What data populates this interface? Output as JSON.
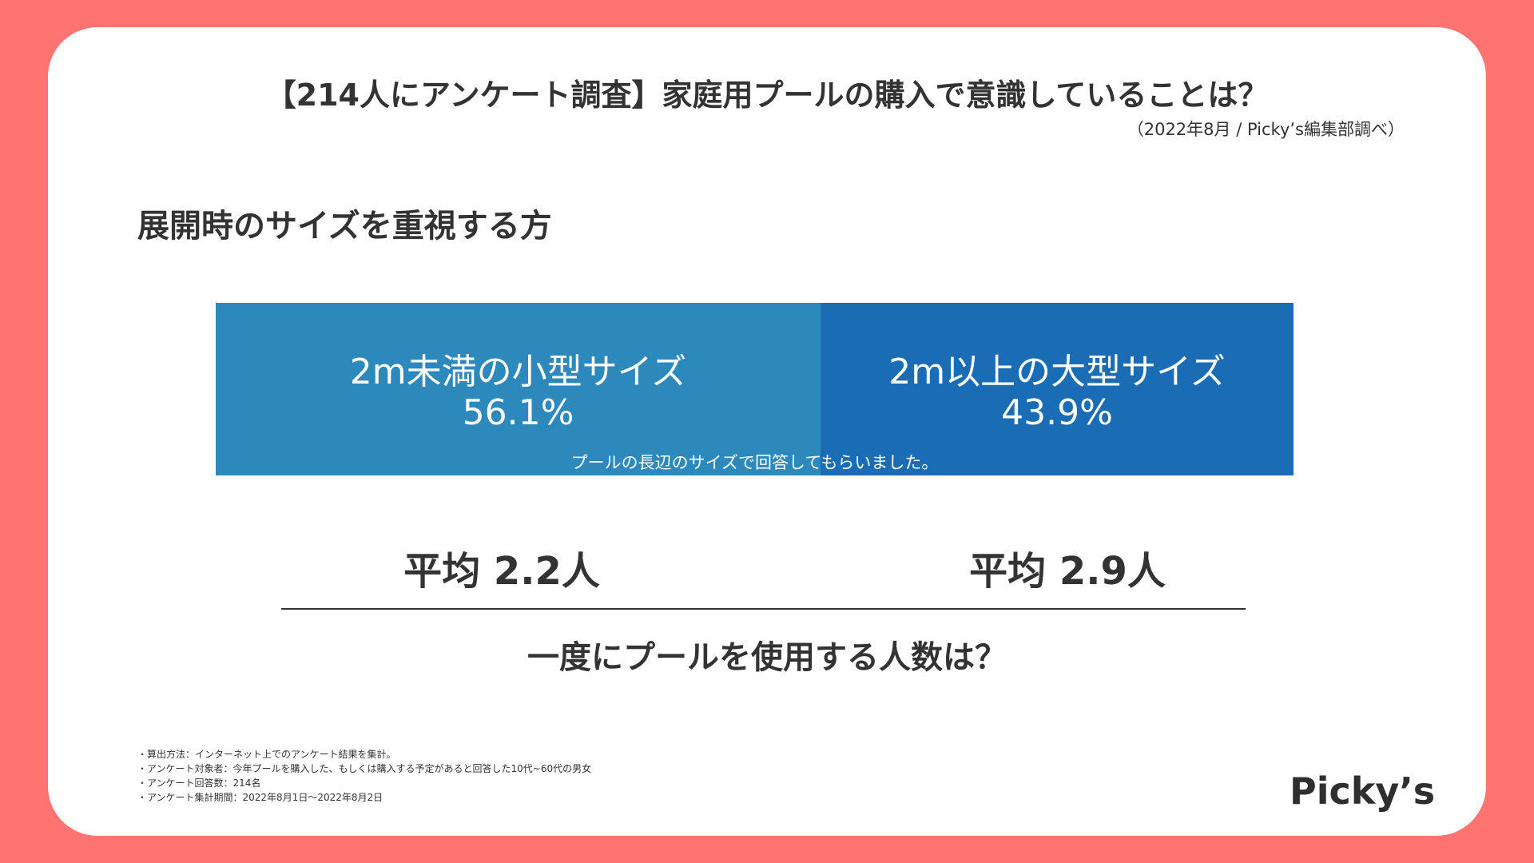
{
  "header": {
    "title": "【214人にアンケート調査】家庭用プールの購入で意識していることは？",
    "source": "（2022年8月 / Picky’s編集部調べ）"
  },
  "subtitle": "展開時のサイズを重視する方",
  "chart_data": {
    "type": "bar",
    "orientation": "horizontal-stacked",
    "title": "展開時のサイズを重視する方",
    "unit": "%",
    "categories": [
      "2m未満の小型サイズ",
      "2m以上の大型サイズ"
    ],
    "values": [
      56.1,
      43.9
    ],
    "value_labels": [
      "56.1%",
      "43.9%"
    ],
    "colors": [
      "#2d88bb",
      "#1a6db5"
    ],
    "annotation": "プールの長辺のサイズで回答してもらいました。",
    "xlim": [
      0,
      100
    ]
  },
  "averages": [
    {
      "label": "平均 2.2人",
      "value": 2.2
    },
    {
      "label": "平均 2.9人",
      "value": 2.9
    }
  ],
  "question": "一度にプールを使用する人数は？",
  "notes": [
    "・算出方法：インターネット上でのアンケート結果を集計。",
    "・アンケート対象者：今年プールを購入した、もしくは購入する予定があると回答した10代~60代の男女",
    "・アンケート回答数：214名",
    "・アンケート集計期間：2022年8月1日～2022年8月2日"
  ],
  "logo": "Picky’s",
  "colors": {
    "background": "#ff7470",
    "card": "#ffffff",
    "text": "#333333"
  }
}
